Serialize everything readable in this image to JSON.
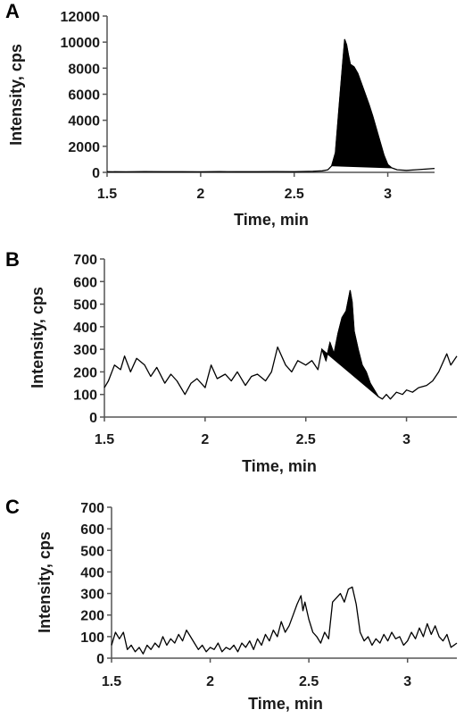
{
  "chart_data": [
    {
      "panel": "A",
      "type": "line",
      "xlabel": "Time, min",
      "ylabel": "Intensity, cps",
      "xlim": [
        1.5,
        3.25
      ],
      "ylim": [
        0,
        12000
      ],
      "xticks": [
        1.5,
        2,
        2.5,
        3
      ],
      "xtick_labels": [
        "1.5",
        "2",
        "2.5",
        "3"
      ],
      "yticks": [
        0,
        2000,
        4000,
        6000,
        8000,
        10000,
        12000
      ],
      "ytick_labels": [
        "0",
        "2000",
        "4000",
        "6000",
        "8000",
        "10000",
        "12000"
      ],
      "series": [
        {
          "x": [
            1.5,
            1.6,
            1.7,
            1.8,
            1.9,
            2.0,
            2.1,
            2.2,
            2.3,
            2.4,
            2.5,
            2.6,
            2.65,
            2.68,
            2.7,
            2.72,
            2.74,
            2.76,
            2.77,
            2.78,
            2.79,
            2.8,
            2.82,
            2.84,
            2.86,
            2.88,
            2.9,
            2.92,
            2.94,
            2.96,
            2.98,
            3.0,
            3.02,
            3.05,
            3.1,
            3.15,
            3.2,
            3.25
          ],
          "y": [
            50,
            40,
            60,
            45,
            50,
            40,
            55,
            45,
            50,
            60,
            50,
            80,
            120,
            200,
            500,
            1500,
            5000,
            8500,
            10200,
            9800,
            9000,
            8300,
            8100,
            7600,
            6800,
            6000,
            5200,
            4300,
            3300,
            2300,
            1300,
            600,
            350,
            200,
            150,
            200,
            250,
            300
          ]
        }
      ],
      "filled_peak_x": [
        2.7,
        3.02
      ]
    },
    {
      "panel": "B",
      "type": "line",
      "xlabel": "Time, min",
      "ylabel": "Intensity, cps",
      "xlim": [
        1.5,
        3.25
      ],
      "ylim": [
        0,
        700
      ],
      "xticks": [
        1.5,
        2,
        2.5,
        3
      ],
      "xtick_labels": [
        "1.5",
        "2",
        "2.5",
        "3"
      ],
      "yticks": [
        0,
        100,
        200,
        300,
        400,
        500,
        600,
        700
      ],
      "ytick_labels": [
        "0",
        "100",
        "200",
        "300",
        "400",
        "500",
        "600",
        "700"
      ],
      "series": [
        {
          "x": [
            1.5,
            1.52,
            1.55,
            1.58,
            1.6,
            1.63,
            1.66,
            1.7,
            1.73,
            1.76,
            1.8,
            1.83,
            1.86,
            1.9,
            1.93,
            1.96,
            2.0,
            2.03,
            2.06,
            2.1,
            2.13,
            2.16,
            2.2,
            2.23,
            2.26,
            2.3,
            2.33,
            2.36,
            2.4,
            2.43,
            2.46,
            2.5,
            2.53,
            2.56,
            2.58,
            2.6,
            2.62,
            2.64,
            2.66,
            2.68,
            2.7,
            2.72,
            2.73,
            2.74,
            2.76,
            2.78,
            2.8,
            2.82,
            2.84,
            2.86,
            2.88,
            2.9,
            2.92,
            2.95,
            2.98,
            3.0,
            3.03,
            3.06,
            3.1,
            3.13,
            3.16,
            3.2,
            3.22,
            3.25
          ],
          "y": [
            130,
            160,
            230,
            210,
            270,
            200,
            260,
            230,
            180,
            220,
            150,
            190,
            160,
            100,
            150,
            170,
            130,
            230,
            170,
            190,
            160,
            200,
            140,
            180,
            190,
            160,
            200,
            310,
            230,
            200,
            250,
            230,
            250,
            210,
            300,
            250,
            330,
            280,
            370,
            440,
            470,
            560,
            510,
            380,
            300,
            230,
            200,
            150,
            120,
            90,
            80,
            100,
            80,
            110,
            100,
            120,
            110,
            130,
            140,
            160,
            200,
            280,
            230,
            270
          ]
        }
      ],
      "filled_peak_x": [
        2.58,
        2.86
      ]
    },
    {
      "panel": "C",
      "type": "line",
      "xlabel": "Time, min",
      "ylabel": "Intensity, cps",
      "xlim": [
        1.5,
        3.25
      ],
      "ylim": [
        0,
        700
      ],
      "xticks": [
        1.5,
        2,
        2.5,
        3
      ],
      "xtick_labels": [
        "1.5",
        "2",
        "2.5",
        "3"
      ],
      "yticks": [
        0,
        100,
        200,
        300,
        400,
        500,
        600,
        700
      ],
      "ytick_labels": [
        "0",
        "100",
        "200",
        "300",
        "400",
        "500",
        "600",
        "700"
      ],
      "series": [
        {
          "x": [
            1.5,
            1.52,
            1.54,
            1.56,
            1.58,
            1.6,
            1.62,
            1.64,
            1.66,
            1.68,
            1.7,
            1.72,
            1.74,
            1.76,
            1.78,
            1.8,
            1.82,
            1.84,
            1.86,
            1.88,
            1.9,
            1.92,
            1.94,
            1.96,
            1.98,
            2.0,
            2.02,
            2.04,
            2.06,
            2.08,
            2.1,
            2.12,
            2.14,
            2.16,
            2.18,
            2.2,
            2.22,
            2.24,
            2.26,
            2.28,
            2.3,
            2.32,
            2.34,
            2.36,
            2.38,
            2.4,
            2.42,
            2.44,
            2.46,
            2.47,
            2.48,
            2.5,
            2.52,
            2.54,
            2.56,
            2.58,
            2.6,
            2.62,
            2.64,
            2.66,
            2.68,
            2.7,
            2.72,
            2.74,
            2.76,
            2.78,
            2.8,
            2.82,
            2.84,
            2.86,
            2.88,
            2.9,
            2.92,
            2.94,
            2.96,
            2.98,
            3.0,
            3.02,
            3.04,
            3.06,
            3.08,
            3.1,
            3.12,
            3.14,
            3.16,
            3.18,
            3.2,
            3.22,
            3.25
          ],
          "y": [
            60,
            120,
            90,
            120,
            40,
            60,
            30,
            50,
            20,
            60,
            40,
            70,
            50,
            100,
            60,
            90,
            70,
            110,
            80,
            130,
            100,
            70,
            40,
            60,
            30,
            50,
            40,
            70,
            30,
            50,
            40,
            60,
            30,
            70,
            50,
            80,
            40,
            90,
            60,
            110,
            80,
            130,
            100,
            170,
            120,
            150,
            200,
            250,
            290,
            220,
            260,
            180,
            120,
            100,
            70,
            120,
            90,
            260,
            280,
            300,
            260,
            320,
            330,
            250,
            120,
            80,
            100,
            60,
            90,
            70,
            110,
            80,
            120,
            90,
            100,
            60,
            80,
            120,
            90,
            140,
            100,
            160,
            110,
            150,
            100,
            80,
            110,
            50,
            70
          ]
        }
      ]
    }
  ]
}
